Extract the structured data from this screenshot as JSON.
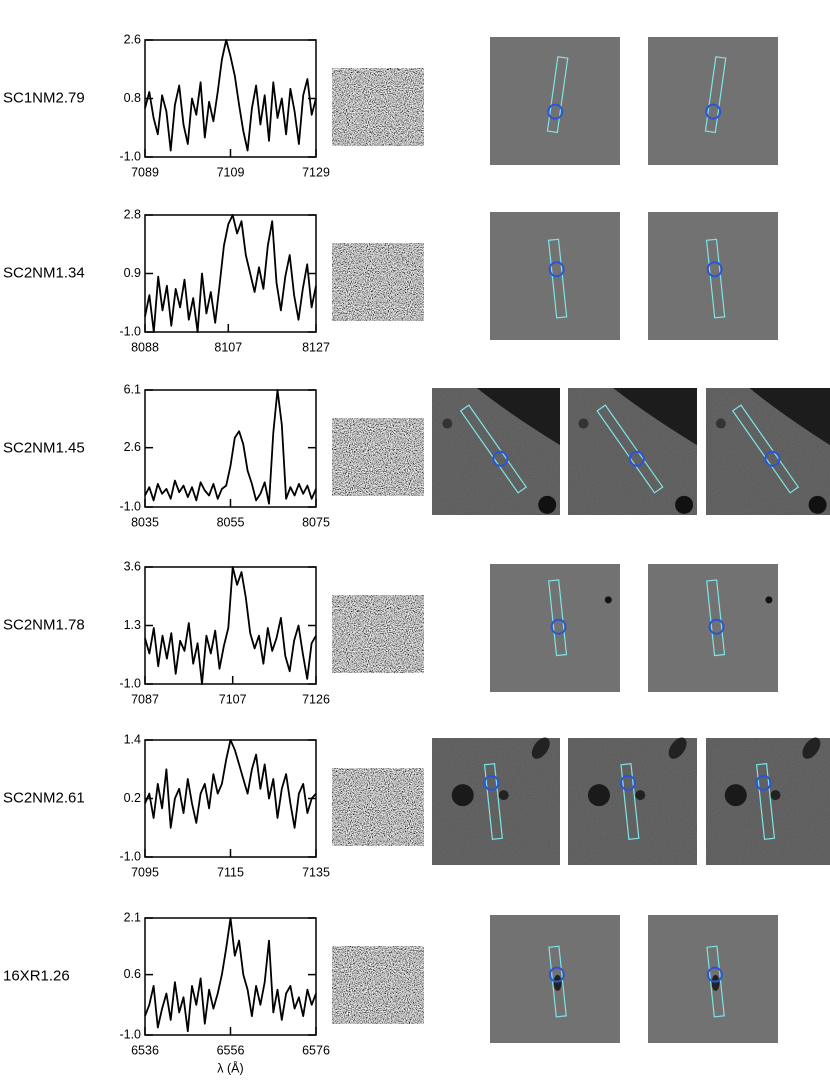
{
  "chart_data": [
    {
      "type": "line",
      "title": "SC1NM2.79",
      "color": "#000000",
      "x": [
        7089,
        7090,
        7091,
        7092,
        7093,
        7094,
        7095,
        7096,
        7097,
        7098,
        7099,
        7100,
        7101,
        7102,
        7103,
        7104,
        7105,
        7106,
        7107,
        7108,
        7109,
        7110,
        7111,
        7112,
        7113,
        7114,
        7115,
        7116,
        7117,
        7118,
        7119,
        7120,
        7121,
        7122,
        7123,
        7124,
        7125,
        7126,
        7127,
        7128,
        7129
      ],
      "values": [
        0.5,
        1.0,
        0.2,
        -0.3,
        0.9,
        0.4,
        -0.8,
        0.6,
        1.2,
        0.0,
        -0.6,
        0.8,
        0.3,
        1.3,
        -0.4,
        0.7,
        0.1,
        1.0,
        2.0,
        2.6,
        2.1,
        1.5,
        0.6,
        -0.2,
        -0.8,
        0.5,
        1.2,
        0.0,
        0.9,
        -0.5,
        1.3,
        0.2,
        0.8,
        -0.3,
        1.1,
        0.4,
        -0.6,
        0.9,
        1.4,
        0.3,
        0.8
      ],
      "xlim": [
        7089,
        7129
      ],
      "xticks": [
        7089,
        7109,
        7129
      ],
      "ylim": [
        -1,
        2.6
      ],
      "yticks": [
        {
          "value": -1,
          "label": "-1.0"
        },
        0.8,
        2.6
      ]
    },
    {
      "type": "line",
      "title": "SC2NM1.34",
      "color": "#000000",
      "x": [
        8088,
        8089,
        8090,
        8091,
        8092,
        8093,
        8094,
        8095,
        8096,
        8097,
        8098,
        8099,
        8100,
        8101,
        8102,
        8103,
        8104,
        8105,
        8106,
        8107,
        8108,
        8109,
        8110,
        8111,
        8112,
        8113,
        8114,
        8115,
        8116,
        8117,
        8118,
        8119,
        8120,
        8121,
        8122,
        8123,
        8124,
        8125,
        8126,
        8127
      ],
      "values": [
        -0.5,
        0.2,
        -1.0,
        0.8,
        -0.3,
        0.5,
        -0.8,
        0.4,
        -0.2,
        0.7,
        -0.6,
        0.1,
        -1.0,
        0.9,
        -0.4,
        0.3,
        -0.7,
        0.5,
        1.8,
        2.5,
        2.8,
        2.2,
        2.6,
        1.5,
        0.9,
        0.3,
        1.1,
        0.4,
        1.8,
        2.6,
        0.6,
        -0.3,
        0.8,
        1.5,
        0.2,
        -0.6,
        0.4,
        1.2,
        -0.2,
        0.5
      ],
      "xlim": [
        8088,
        8127
      ],
      "xticks": [
        8088,
        8107,
        8127
      ],
      "ylim": [
        -1,
        2.8
      ],
      "yticks": [
        {
          "value": -1,
          "label": "-1.0"
        },
        0.9,
        2.8
      ]
    },
    {
      "type": "line",
      "title": "SC2NM1.45",
      "color": "#000000",
      "x": [
        8035,
        8036,
        8037,
        8038,
        8039,
        8040,
        8041,
        8042,
        8043,
        8044,
        8045,
        8046,
        8047,
        8048,
        8049,
        8050,
        8051,
        8052,
        8053,
        8054,
        8055,
        8056,
        8057,
        8058,
        8059,
        8060,
        8061,
        8062,
        8063,
        8064,
        8065,
        8066,
        8067,
        8068,
        8069,
        8070,
        8071,
        8072,
        8073,
        8074,
        8075
      ],
      "values": [
        -0.3,
        0.2,
        -0.6,
        0.4,
        -0.2,
        0.1,
        -0.5,
        0.6,
        -0.1,
        0.3,
        -0.4,
        0.2,
        -0.6,
        0.5,
        0.0,
        -0.3,
        0.4,
        -0.5,
        0.1,
        0.3,
        1.5,
        3.2,
        3.6,
        2.8,
        1.2,
        0.4,
        -0.6,
        -0.2,
        0.5,
        -0.8,
        3.5,
        6.1,
        4.0,
        -0.5,
        0.2,
        -0.3,
        0.4,
        -0.2,
        0.3,
        -0.5,
        0.1
      ],
      "xlim": [
        8035,
        8075
      ],
      "xticks": [
        8035,
        8055,
        8075
      ],
      "ylim": [
        -1,
        6.1
      ],
      "yticks": [
        {
          "value": -1,
          "label": "-1.0"
        },
        2.6,
        6.1
      ]
    },
    {
      "type": "line",
      "title": "SC2NM1.78",
      "color": "#000000",
      "x": [
        7087,
        7088,
        7089,
        7090,
        7091,
        7092,
        7093,
        7094,
        7095,
        7096,
        7097,
        7098,
        7099,
        7100,
        7101,
        7102,
        7103,
        7104,
        7105,
        7106,
        7107,
        7108,
        7109,
        7110,
        7111,
        7112,
        7113,
        7114,
        7115,
        7116,
        7117,
        7118,
        7119,
        7120,
        7121,
        7122,
        7123,
        7124,
        7125,
        7126
      ],
      "values": [
        0.8,
        0.2,
        1.2,
        -0.3,
        0.9,
        0.0,
        1.0,
        -0.6,
        0.7,
        0.3,
        1.4,
        -0.2,
        0.6,
        -1.0,
        0.9,
        0.2,
        1.1,
        -0.4,
        0.5,
        1.2,
        3.6,
        2.9,
        3.4,
        2.4,
        1.0,
        0.4,
        0.9,
        -0.2,
        1.2,
        0.3,
        0.8,
        1.6,
        0.1,
        -0.5,
        0.7,
        1.3,
        0.2,
        -0.8,
        0.6,
        0.9
      ],
      "xlim": [
        7087,
        7126
      ],
      "xticks": [
        7087,
        7107,
        7126
      ],
      "ylim": [
        -1,
        3.6
      ],
      "yticks": [
        {
          "value": -1,
          "label": "-1.0"
        },
        1.3,
        3.6
      ]
    },
    {
      "type": "line",
      "title": "SC2NM2.61",
      "color": "#000000",
      "x": [
        7095,
        7096,
        7097,
        7098,
        7099,
        7100,
        7101,
        7102,
        7103,
        7104,
        7105,
        7106,
        7107,
        7108,
        7109,
        7110,
        7111,
        7112,
        7113,
        7114,
        7115,
        7116,
        7117,
        7118,
        7119,
        7120,
        7121,
        7122,
        7123,
        7124,
        7125,
        7126,
        7127,
        7128,
        7129,
        7130,
        7131,
        7132,
        7133,
        7134,
        7135
      ],
      "values": [
        0.1,
        0.3,
        -0.2,
        0.5,
        0.0,
        0.8,
        -0.4,
        0.2,
        0.4,
        -0.1,
        0.6,
        0.1,
        -0.3,
        0.3,
        0.5,
        0.0,
        0.7,
        0.3,
        0.5,
        1.0,
        1.4,
        1.2,
        0.9,
        0.6,
        0.3,
        0.8,
        1.1,
        0.4,
        0.9,
        0.2,
        0.6,
        -0.2,
        0.4,
        0.7,
        0.1,
        -0.4,
        0.3,
        0.5,
        -0.1,
        0.2,
        0.3
      ],
      "xlim": [
        7095,
        7135
      ],
      "xticks": [
        7095,
        7115,
        7135
      ],
      "ylim": [
        -1,
        1.4
      ],
      "yticks": [
        {
          "value": -1,
          "label": "-1.0"
        },
        0.2,
        1.4
      ]
    },
    {
      "type": "line",
      "title": "16XR1.26",
      "color": "#000000",
      "xlabel": "λ (Å)",
      "x": [
        6536,
        6537,
        6538,
        6539,
        6540,
        6541,
        6542,
        6543,
        6544,
        6545,
        6546,
        6547,
        6548,
        6549,
        6550,
        6551,
        6552,
        6553,
        6554,
        6555,
        6556,
        6557,
        6558,
        6559,
        6560,
        6561,
        6562,
        6563,
        6564,
        6565,
        6566,
        6567,
        6568,
        6569,
        6570,
        6571,
        6572,
        6573,
        6574,
        6575,
        6576
      ],
      "values": [
        -0.5,
        -0.2,
        0.3,
        -0.8,
        -0.3,
        0.1,
        -0.6,
        0.4,
        -0.4,
        0.0,
        -0.9,
        0.3,
        -0.2,
        0.5,
        -0.7,
        0.2,
        -0.3,
        0.1,
        0.6,
        1.3,
        2.1,
        1.1,
        1.5,
        0.6,
        0.2,
        -0.5,
        0.3,
        -0.2,
        0.4,
        1.5,
        -0.4,
        0.2,
        -0.6,
        0.1,
        0.3,
        -0.3,
        0.0,
        -0.5,
        0.2,
        -0.2,
        0.1
      ],
      "xlim": [
        6536,
        6576
      ],
      "xticks": [
        6536,
        6556,
        6576
      ],
      "ylim": [
        -1,
        2.1
      ],
      "yticks": [
        {
          "value": -1,
          "label": "-1.0"
        },
        0.6,
        2.1
      ]
    }
  ]
}
